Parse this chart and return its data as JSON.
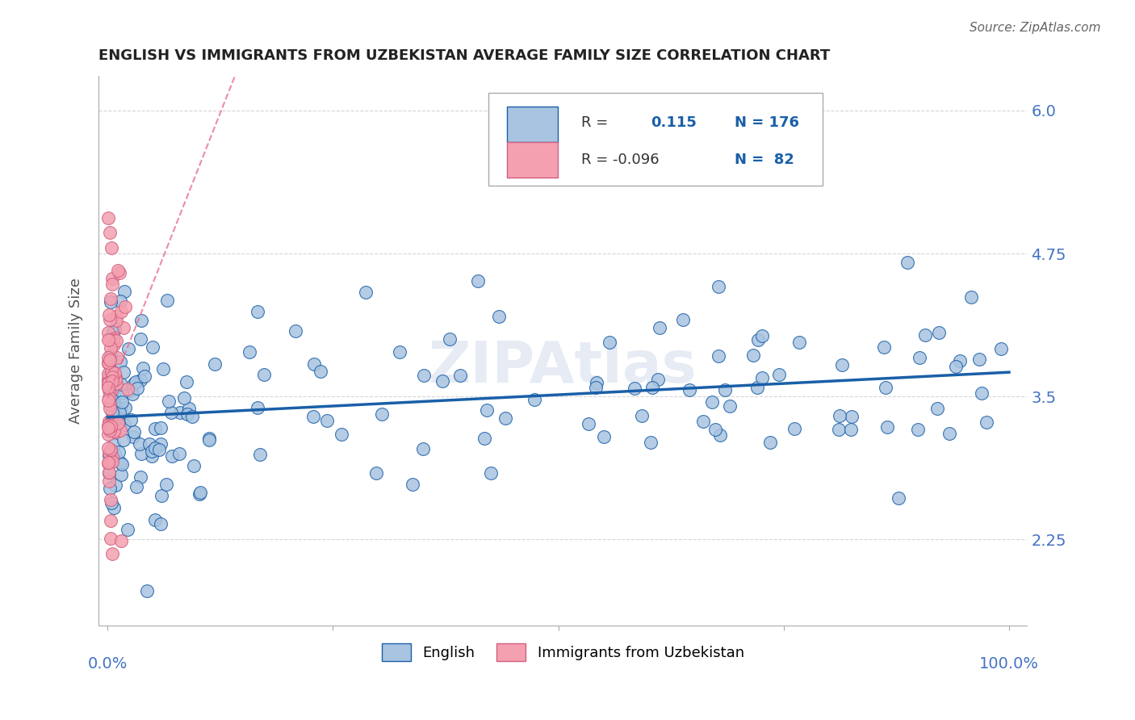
{
  "title": "ENGLISH VS IMMIGRANTS FROM UZBEKISTAN AVERAGE FAMILY SIZE CORRELATION CHART",
  "source": "Source: ZipAtlas.com",
  "ylabel": "Average Family Size",
  "yticks": [
    2.25,
    3.5,
    4.75,
    6.0
  ],
  "ymin": 1.5,
  "ymax": 6.3,
  "xmin": -0.01,
  "xmax": 1.02,
  "color_english": "#a8c4e0",
  "color_uzbek": "#f4a0b0",
  "color_english_edge": "#1a5fa8",
  "color_uzbek_edge": "#d06080",
  "color_english_line": "#1a5fa8",
  "color_uzbek_line": "#e87090",
  "grid_color": "#cccccc",
  "leg_r1": "R =",
  "leg_v1": "0.115",
  "leg_n1": "N = 176",
  "leg_r2": "R = -0.096",
  "leg_n2": "N =  82",
  "tick_color": "#4472c4"
}
